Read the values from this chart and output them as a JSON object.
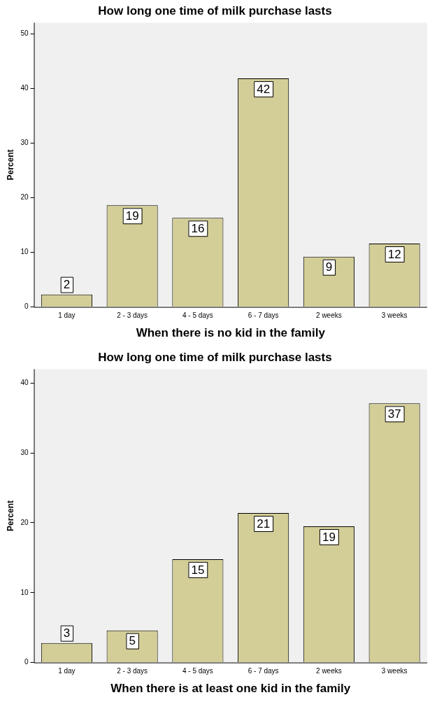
{
  "chart_data": [
    {
      "type": "bar",
      "title": "How long one time of milk purchase lasts",
      "xlabel": "When there is no kid in the family",
      "ylabel": "Percent",
      "categories": [
        "1 day",
        "2 - 3 days",
        "4 - 5 days",
        "6 - 7 days",
        "2 weeks",
        "3 weeks"
      ],
      "values": [
        2.3,
        18.6,
        16.3,
        41.8,
        9.2,
        11.6
      ],
      "value_labels": [
        "2",
        "19",
        "16",
        "42",
        "9",
        "12"
      ],
      "color": "#d3ce97",
      "ylim": [
        0,
        52
      ],
      "yticks": [
        0,
        10,
        20,
        30,
        40,
        50
      ],
      "grid": false,
      "legend": false
    },
    {
      "type": "bar",
      "title": "How long one time of milk purchase lasts",
      "xlabel": "When there is at least one kid in the family",
      "ylabel": "Percent",
      "categories": [
        "1 day",
        "2 - 3 days",
        "4 - 5 days",
        "6 - 7 days",
        "2 weeks",
        "3 weeks"
      ],
      "values": [
        2.8,
        4.6,
        14.8,
        21.4,
        19.5,
        37.1
      ],
      "value_labels": [
        "3",
        "5",
        "15",
        "21",
        "19",
        "37"
      ],
      "color": "#d3ce97",
      "ylim": [
        0,
        42
      ],
      "yticks": [
        0,
        10,
        20,
        30,
        40
      ],
      "grid": false,
      "legend": false
    }
  ]
}
